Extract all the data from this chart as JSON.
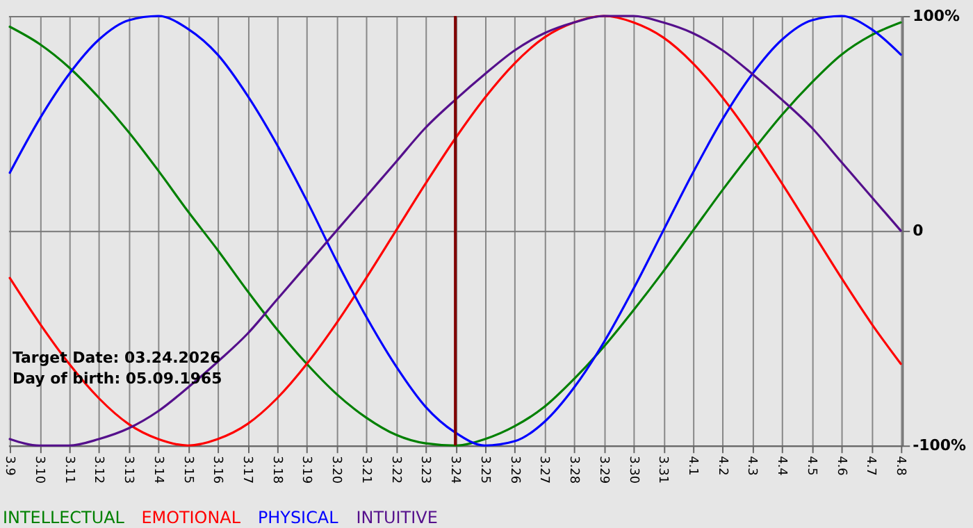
{
  "chart_data": {
    "type": "line",
    "categories": [
      "3.9",
      "3.10",
      "3.11",
      "3.12",
      "3.13",
      "3.14",
      "3.15",
      "3.16",
      "3.17",
      "3.18",
      "3.19",
      "3.20",
      "3.21",
      "3.22",
      "3.23",
      "3.24",
      "3.25",
      "3.26",
      "3.27",
      "3.28",
      "3.29",
      "3.30",
      "3.31",
      "4.1",
      "4.2",
      "4.3",
      "4.4",
      "4.5",
      "4.6",
      "4.7",
      "4.8"
    ],
    "series": [
      {
        "name": "INTELLECTUAL",
        "color": "#008000",
        "values": [
          95,
          87,
          76,
          62,
          46,
          28,
          9,
          -9,
          -28,
          -46,
          -62,
          -76,
          -87,
          -95,
          -99,
          -100,
          -97,
          -91,
          -82,
          -69,
          -54,
          -37,
          -19,
          0,
          19,
          37,
          54,
          69,
          82,
          91,
          97
        ]
      },
      {
        "name": "EMOTIONAL",
        "color": "#ff0000",
        "values": [
          -22,
          -43,
          -62,
          -78,
          -90,
          -97,
          -100,
          -97,
          -90,
          -78,
          -62,
          -43,
          -22,
          0,
          22,
          43,
          62,
          78,
          90,
          97,
          100,
          97,
          90,
          78,
          62,
          43,
          22,
          0,
          -22,
          -43,
          -62
        ]
      },
      {
        "name": "PHYSICAL",
        "color": "#0000ff",
        "values": [
          27,
          52,
          73,
          89,
          98,
          100,
          94,
          82,
          63,
          40,
          14,
          -14,
          -40,
          -63,
          -82,
          -94,
          -100,
          -98,
          -89,
          -73,
          -52,
          -27,
          0,
          27,
          52,
          73,
          89,
          98,
          100,
          94,
          82
        ]
      },
      {
        "name": "INTUITIVE",
        "color": "#55108c",
        "values": [
          -97,
          -100,
          -100,
          -97,
          -92,
          -84,
          -73,
          -61,
          -48,
          -32,
          -16,
          0,
          16,
          32,
          48,
          61,
          73,
          84,
          92,
          97,
          100,
          100,
          97,
          92,
          84,
          73,
          61,
          48,
          32,
          16,
          0
        ]
      }
    ],
    "ylim": [
      -100,
      100
    ],
    "yticks": [
      {
        "value": -100,
        "label": "-100%"
      },
      0,
      {
        "value": 100,
        "label": "100%"
      }
    ],
    "grid": true,
    "legend": "bottom left",
    "ref_lines": [
      {
        "axis": "x",
        "value": "3.24",
        "color": "#800000"
      }
    ],
    "annotations": [
      "Target Date: 03.24.2026",
      "Day of birth: 05.09.1965"
    ]
  }
}
